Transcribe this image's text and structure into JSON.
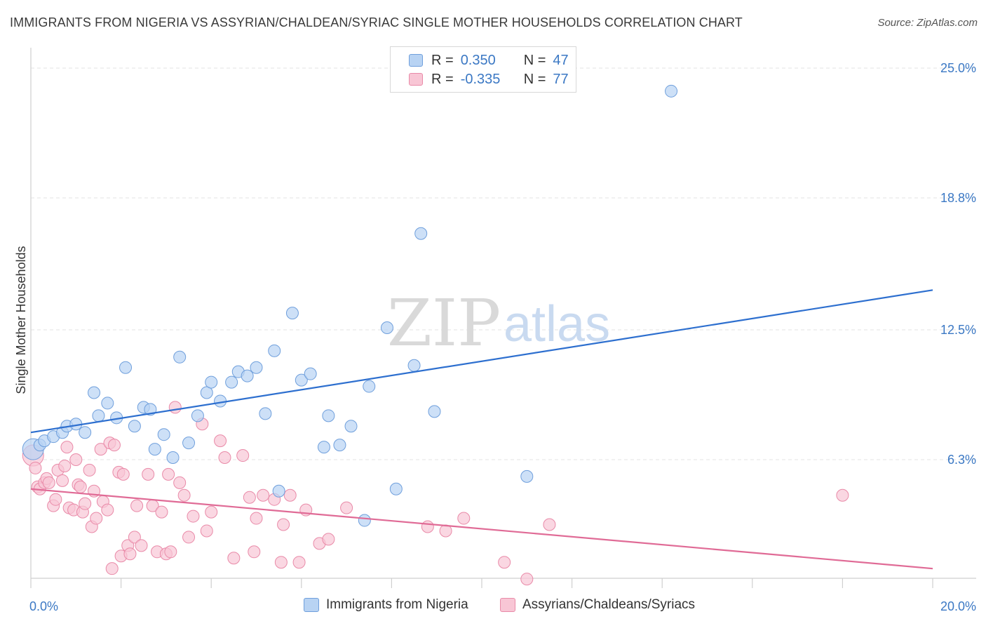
{
  "title": "IMMIGRANTS FROM NIGERIA VS ASSYRIAN/CHALDEAN/SYRIAC SINGLE MOTHER HOUSEHOLDS CORRELATION CHART",
  "source": "Source: ZipAtlas.com",
  "watermark": {
    "zip": "ZIP",
    "atlas": "atlas"
  },
  "legend": {
    "r_label": "R =",
    "n_label": "N =",
    "rows": [
      {
        "r": "0.350",
        "n": "47"
      },
      {
        "r": "-0.335",
        "n": "77"
      }
    ]
  },
  "colors": {
    "blue_fill": "#b8d3f3",
    "blue_stroke": "#6f9fdc",
    "blue_line": "#2d6fcf",
    "pink_fill": "#f8c6d5",
    "pink_stroke": "#e98aa8",
    "pink_line": "#e06b96",
    "tick_text": "#3b78c4",
    "grid": "#e3e3e3"
  },
  "chart_data": {
    "type": "scatter",
    "title": "IMMIGRANTS FROM NIGERIA VS ASSYRIAN/CHALDEAN/SYRIAC SINGLE MOTHER HOUSEHOLDS CORRELATION CHART",
    "xlabel": "",
    "ylabel": "Single Mother Households",
    "xlim": [
      0,
      20
    ],
    "ylim": [
      0,
      26
    ],
    "x_tick_labels": [
      "0.0%",
      "20.0%"
    ],
    "y_ticks": [
      6.3,
      12.5,
      18.8,
      25.0
    ],
    "y_tick_labels": [
      "6.3%",
      "12.5%",
      "18.8%",
      "25.0%"
    ],
    "grid": true,
    "legend_position": "top-center",
    "series": [
      {
        "name": "Immigrants from Nigeria",
        "color": "#b8d3f3",
        "trend": {
          "x": [
            0,
            20
          ],
          "y": [
            7.6,
            14.4
          ]
        },
        "points": [
          [
            0.05,
            6.8,
            "L"
          ],
          [
            0.2,
            7.0
          ],
          [
            0.3,
            7.2
          ],
          [
            0.5,
            7.4
          ],
          [
            0.7,
            7.6
          ],
          [
            0.8,
            7.9
          ],
          [
            1.0,
            8.0
          ],
          [
            1.2,
            7.6
          ],
          [
            1.4,
            9.5
          ],
          [
            1.5,
            8.4
          ],
          [
            1.7,
            9.0
          ],
          [
            1.9,
            8.3
          ],
          [
            2.1,
            10.7
          ],
          [
            2.3,
            7.9
          ],
          [
            2.5,
            8.8
          ],
          [
            2.65,
            8.7
          ],
          [
            2.75,
            6.8
          ],
          [
            2.95,
            7.5
          ],
          [
            3.15,
            6.4
          ],
          [
            3.3,
            11.2
          ],
          [
            3.5,
            7.1
          ],
          [
            3.7,
            8.4
          ],
          [
            3.9,
            9.5
          ],
          [
            4.0,
            10.0
          ],
          [
            4.2,
            9.1
          ],
          [
            4.45,
            10.0
          ],
          [
            4.6,
            10.5
          ],
          [
            4.8,
            10.3
          ],
          [
            5.0,
            10.7
          ],
          [
            5.2,
            8.5
          ],
          [
            5.4,
            11.5
          ],
          [
            5.5,
            4.8
          ],
          [
            5.8,
            13.3
          ],
          [
            6.0,
            10.1
          ],
          [
            6.2,
            10.4
          ],
          [
            6.5,
            6.9
          ],
          [
            6.6,
            8.4
          ],
          [
            6.85,
            7.0
          ],
          [
            7.1,
            7.9
          ],
          [
            7.4,
            3.4
          ],
          [
            7.5,
            9.8
          ],
          [
            7.9,
            12.6
          ],
          [
            8.1,
            4.9
          ],
          [
            8.5,
            10.8
          ],
          [
            8.65,
            17.1
          ],
          [
            8.95,
            8.6
          ],
          [
            11.0,
            5.5
          ],
          [
            14.2,
            23.9
          ]
        ]
      },
      {
        "name": "Assyrians/Chaldeans/Syriacs",
        "color": "#f8c6d5",
        "trend": {
          "x": [
            0,
            20
          ],
          "y": [
            4.9,
            1.1
          ]
        },
        "points": [
          [
            0.05,
            6.5,
            "L"
          ],
          [
            0.1,
            5.9
          ],
          [
            0.15,
            5.0
          ],
          [
            0.2,
            4.9
          ],
          [
            0.3,
            5.2
          ],
          [
            0.35,
            5.4
          ],
          [
            0.4,
            5.2
          ],
          [
            0.5,
            4.1
          ],
          [
            0.55,
            4.4
          ],
          [
            0.6,
            5.8
          ],
          [
            0.7,
            5.3
          ],
          [
            0.75,
            6.0
          ],
          [
            0.8,
            6.9
          ],
          [
            0.85,
            4.0
          ],
          [
            0.95,
            3.9
          ],
          [
            1.0,
            6.3
          ],
          [
            1.05,
            5.1
          ],
          [
            1.1,
            5.0
          ],
          [
            1.15,
            3.8
          ],
          [
            1.2,
            4.2
          ],
          [
            1.3,
            5.8
          ],
          [
            1.35,
            3.1
          ],
          [
            1.4,
            4.8
          ],
          [
            1.45,
            3.5
          ],
          [
            1.55,
            6.8
          ],
          [
            1.6,
            4.3
          ],
          [
            1.7,
            3.9
          ],
          [
            1.75,
            7.1
          ],
          [
            1.8,
            1.1
          ],
          [
            1.85,
            7.0
          ],
          [
            1.95,
            5.7
          ],
          [
            2.0,
            1.7
          ],
          [
            2.05,
            5.6
          ],
          [
            2.15,
            2.2
          ],
          [
            2.2,
            1.8
          ],
          [
            2.3,
            2.6
          ],
          [
            2.35,
            4.1
          ],
          [
            2.45,
            2.2
          ],
          [
            2.6,
            5.6
          ],
          [
            2.7,
            4.1
          ],
          [
            2.8,
            1.9
          ],
          [
            2.9,
            3.8
          ],
          [
            3.0,
            1.8
          ],
          [
            3.05,
            5.6
          ],
          [
            3.1,
            1.9
          ],
          [
            3.2,
            8.8
          ],
          [
            3.3,
            5.2
          ],
          [
            3.4,
            4.6
          ],
          [
            3.5,
            2.6
          ],
          [
            3.6,
            3.6
          ],
          [
            3.8,
            8.0
          ],
          [
            3.9,
            2.9
          ],
          [
            4.0,
            3.8
          ],
          [
            4.2,
            7.2
          ],
          [
            4.3,
            6.4
          ],
          [
            4.5,
            1.6
          ],
          [
            4.7,
            6.5
          ],
          [
            4.85,
            4.5
          ],
          [
            4.95,
            1.9
          ],
          [
            5.0,
            3.5
          ],
          [
            5.15,
            4.6
          ],
          [
            5.4,
            4.4
          ],
          [
            5.55,
            1.4
          ],
          [
            5.6,
            3.2
          ],
          [
            5.75,
            4.6
          ],
          [
            5.95,
            1.4
          ],
          [
            6.1,
            3.9
          ],
          [
            6.4,
            2.3
          ],
          [
            6.6,
            2.5
          ],
          [
            7.0,
            4.0
          ],
          [
            8.8,
            3.1
          ],
          [
            9.2,
            2.9
          ],
          [
            9.6,
            3.5
          ],
          [
            10.5,
            1.4
          ],
          [
            11.0,
            0.6
          ],
          [
            11.5,
            3.2
          ],
          [
            18.0,
            4.6
          ]
        ]
      }
    ]
  }
}
